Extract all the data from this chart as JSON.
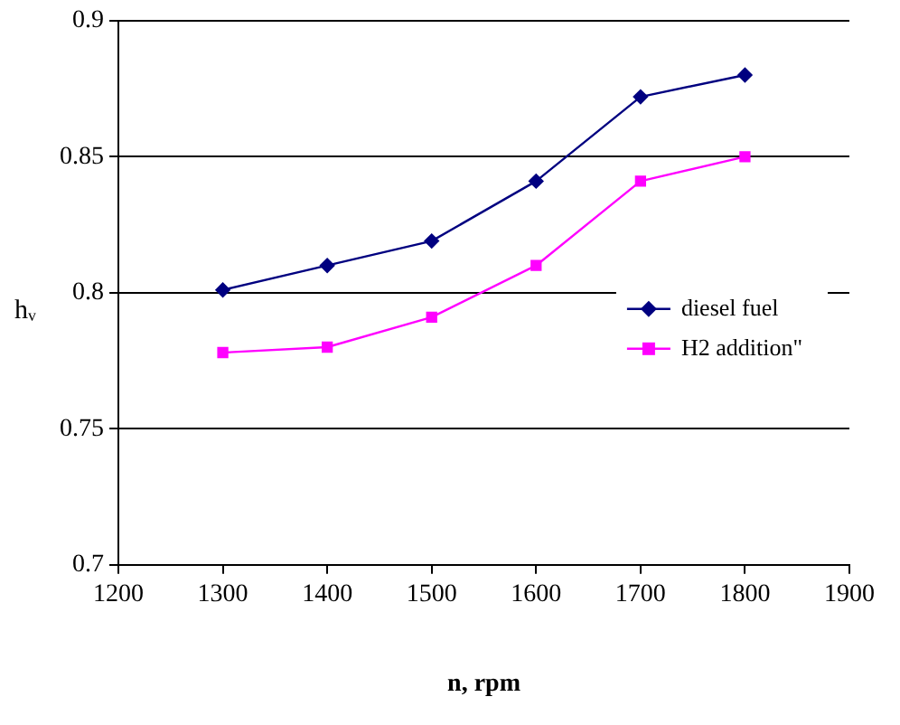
{
  "chart_data": {
    "type": "line",
    "xlabel": "n, rpm",
    "ylabel": "hᵥ",
    "x": [
      1300,
      1400,
      1500,
      1600,
      1700,
      1800
    ],
    "series": [
      {
        "name": "diesel fuel",
        "color": "#000080",
        "marker": "diamond",
        "values": [
          0.801,
          0.81,
          0.819,
          0.841,
          0.872,
          0.88
        ]
      },
      {
        "name": "H2 addition\"",
        "color": "#ff00ff",
        "marker": "square",
        "values": [
          0.778,
          0.78,
          0.791,
          0.81,
          0.841,
          0.85
        ]
      }
    ],
    "xlim": [
      1200,
      1900
    ],
    "xticks": [
      1200,
      1300,
      1400,
      1500,
      1600,
      1700,
      1800,
      1900
    ],
    "ylim": [
      0.7,
      0.9
    ],
    "yticks": [
      0.7,
      0.75,
      0.8,
      0.85,
      0.9
    ],
    "grid": "y",
    "legend": "right"
  }
}
